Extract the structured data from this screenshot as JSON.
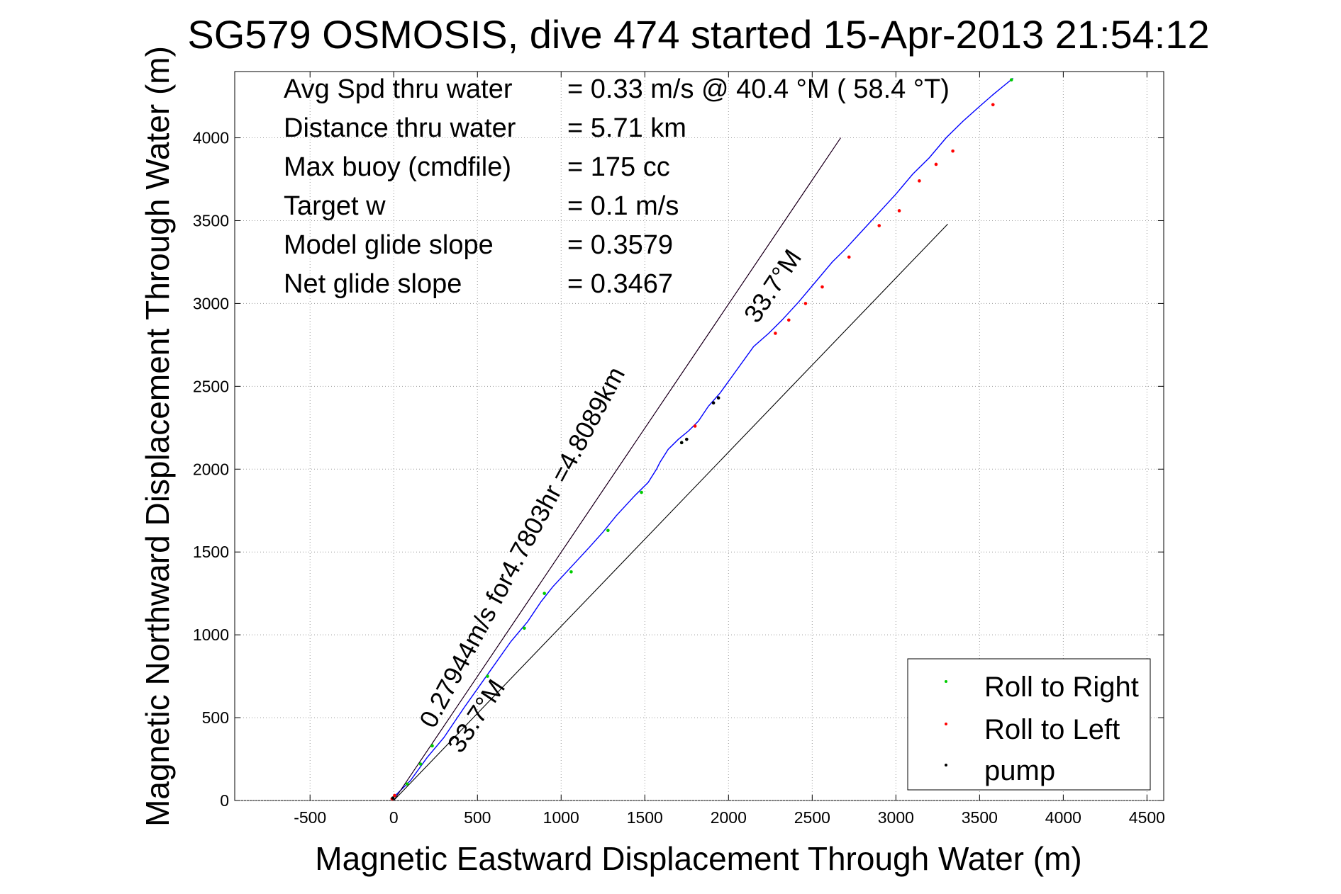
{
  "chart_data": {
    "type": "line",
    "title": "SG579 OSMOSIS, dive 474 started 15-Apr-2013 21:54:12",
    "xlabel": "Magnetic Eastward Displacement Through Water (m)",
    "ylabel": "Magnetic Northward Displacement Through Water (m)",
    "xlim": [
      -950,
      4600
    ],
    "ylim": [
      0,
      4400
    ],
    "xticks": [
      -500,
      0,
      500,
      1000,
      1500,
      2000,
      2500,
      3000,
      3500,
      4000,
      4500
    ],
    "yticks": [
      0,
      500,
      1000,
      1500,
      2000,
      2500,
      3000,
      3500,
      4000
    ],
    "grid": true,
    "stats": [
      {
        "label": "Avg Spd thru water",
        "value": "=  0.33 m/s @  40.4 °M ( 58.4 °T)"
      },
      {
        "label": "Distance thru water",
        "value": "=  5.71 km"
      },
      {
        "label": "Max buoy (cmdfile)",
        "value": "= 175 cc"
      },
      {
        "label": "Target w",
        "value": "= 0.1 m/s"
      },
      {
        "label": "Model glide slope",
        "value": "= 0.3579"
      },
      {
        "label": "Net glide slope",
        "value": "= 0.3467"
      }
    ],
    "annotations": {
      "current": "0.27944m/s for4.7803hr =4.8089km",
      "heading_upper": "33.7°M",
      "heading_lower": "33.7°M"
    },
    "series": [
      {
        "name": "track",
        "color": "#0000ff",
        "x": [
          0,
          100,
          200,
          300,
          420,
          560,
          700,
          800,
          880,
          950,
          1060,
          1170,
          1250,
          1330,
          1440,
          1520,
          1570,
          1590,
          1640,
          1700,
          1760,
          1820,
          1880,
          1950,
          2050,
          2150,
          2240,
          2320,
          2420,
          2520,
          2620,
          2700,
          2800,
          2900,
          3000,
          3100,
          3200,
          3300,
          3400,
          3500,
          3580,
          3640,
          3700
        ],
        "y": [
          20,
          120,
          260,
          380,
          560,
          760,
          960,
          1080,
          1200,
          1290,
          1410,
          1530,
          1620,
          1720,
          1840,
          1920,
          2000,
          2040,
          2120,
          2180,
          2230,
          2290,
          2380,
          2460,
          2600,
          2740,
          2820,
          2900,
          3010,
          3130,
          3250,
          3330,
          3440,
          3550,
          3660,
          3780,
          3880,
          4000,
          4100,
          4190,
          4260,
          4310,
          4360
        ]
      },
      {
        "name": "heading line",
        "color": "#ff00ff",
        "x": [
          0,
          2670
        ],
        "y": [
          0,
          4000
        ]
      },
      {
        "name": "bound upper",
        "color": "#000000",
        "x": [
          0,
          2670
        ],
        "y": [
          0,
          4000
        ]
      },
      {
        "name": "bound lower",
        "color": "#000000",
        "x": [
          0,
          3310
        ],
        "y": [
          0,
          3480
        ]
      },
      {
        "name": "Roll to Right",
        "color": "#00cc00",
        "x": [
          80,
          160,
          230,
          560,
          780,
          900,
          1060,
          1280,
          1480,
          1720,
          3690
        ],
        "y": [
          100,
          220,
          330,
          750,
          1040,
          1250,
          1380,
          1630,
          1860,
          2160,
          4350
        ]
      },
      {
        "name": "Roll to Left",
        "color": "#ff0000",
        "x": [
          -10,
          5,
          1800,
          2280,
          2360,
          2460,
          2560,
          2720,
          2900,
          3020,
          3140,
          3240,
          3340,
          3580
        ],
        "y": [
          10,
          30,
          2260,
          2820,
          2900,
          3000,
          3100,
          3280,
          3470,
          3560,
          3740,
          3840,
          3920,
          4200
        ]
      },
      {
        "name": "pump",
        "color": "#000000",
        "x": [
          -5,
          1720,
          1750,
          1910,
          1940
        ],
        "y": [
          15,
          2160,
          2180,
          2400,
          2430
        ]
      }
    ],
    "legend": {
      "placement": "bottom-right",
      "entries": [
        {
          "label": "Roll to Right",
          "color": "#00cc00"
        },
        {
          "label": "Roll to Left",
          "color": "#ff0000"
        },
        {
          "label": "pump",
          "color": "#000000"
        }
      ]
    }
  }
}
